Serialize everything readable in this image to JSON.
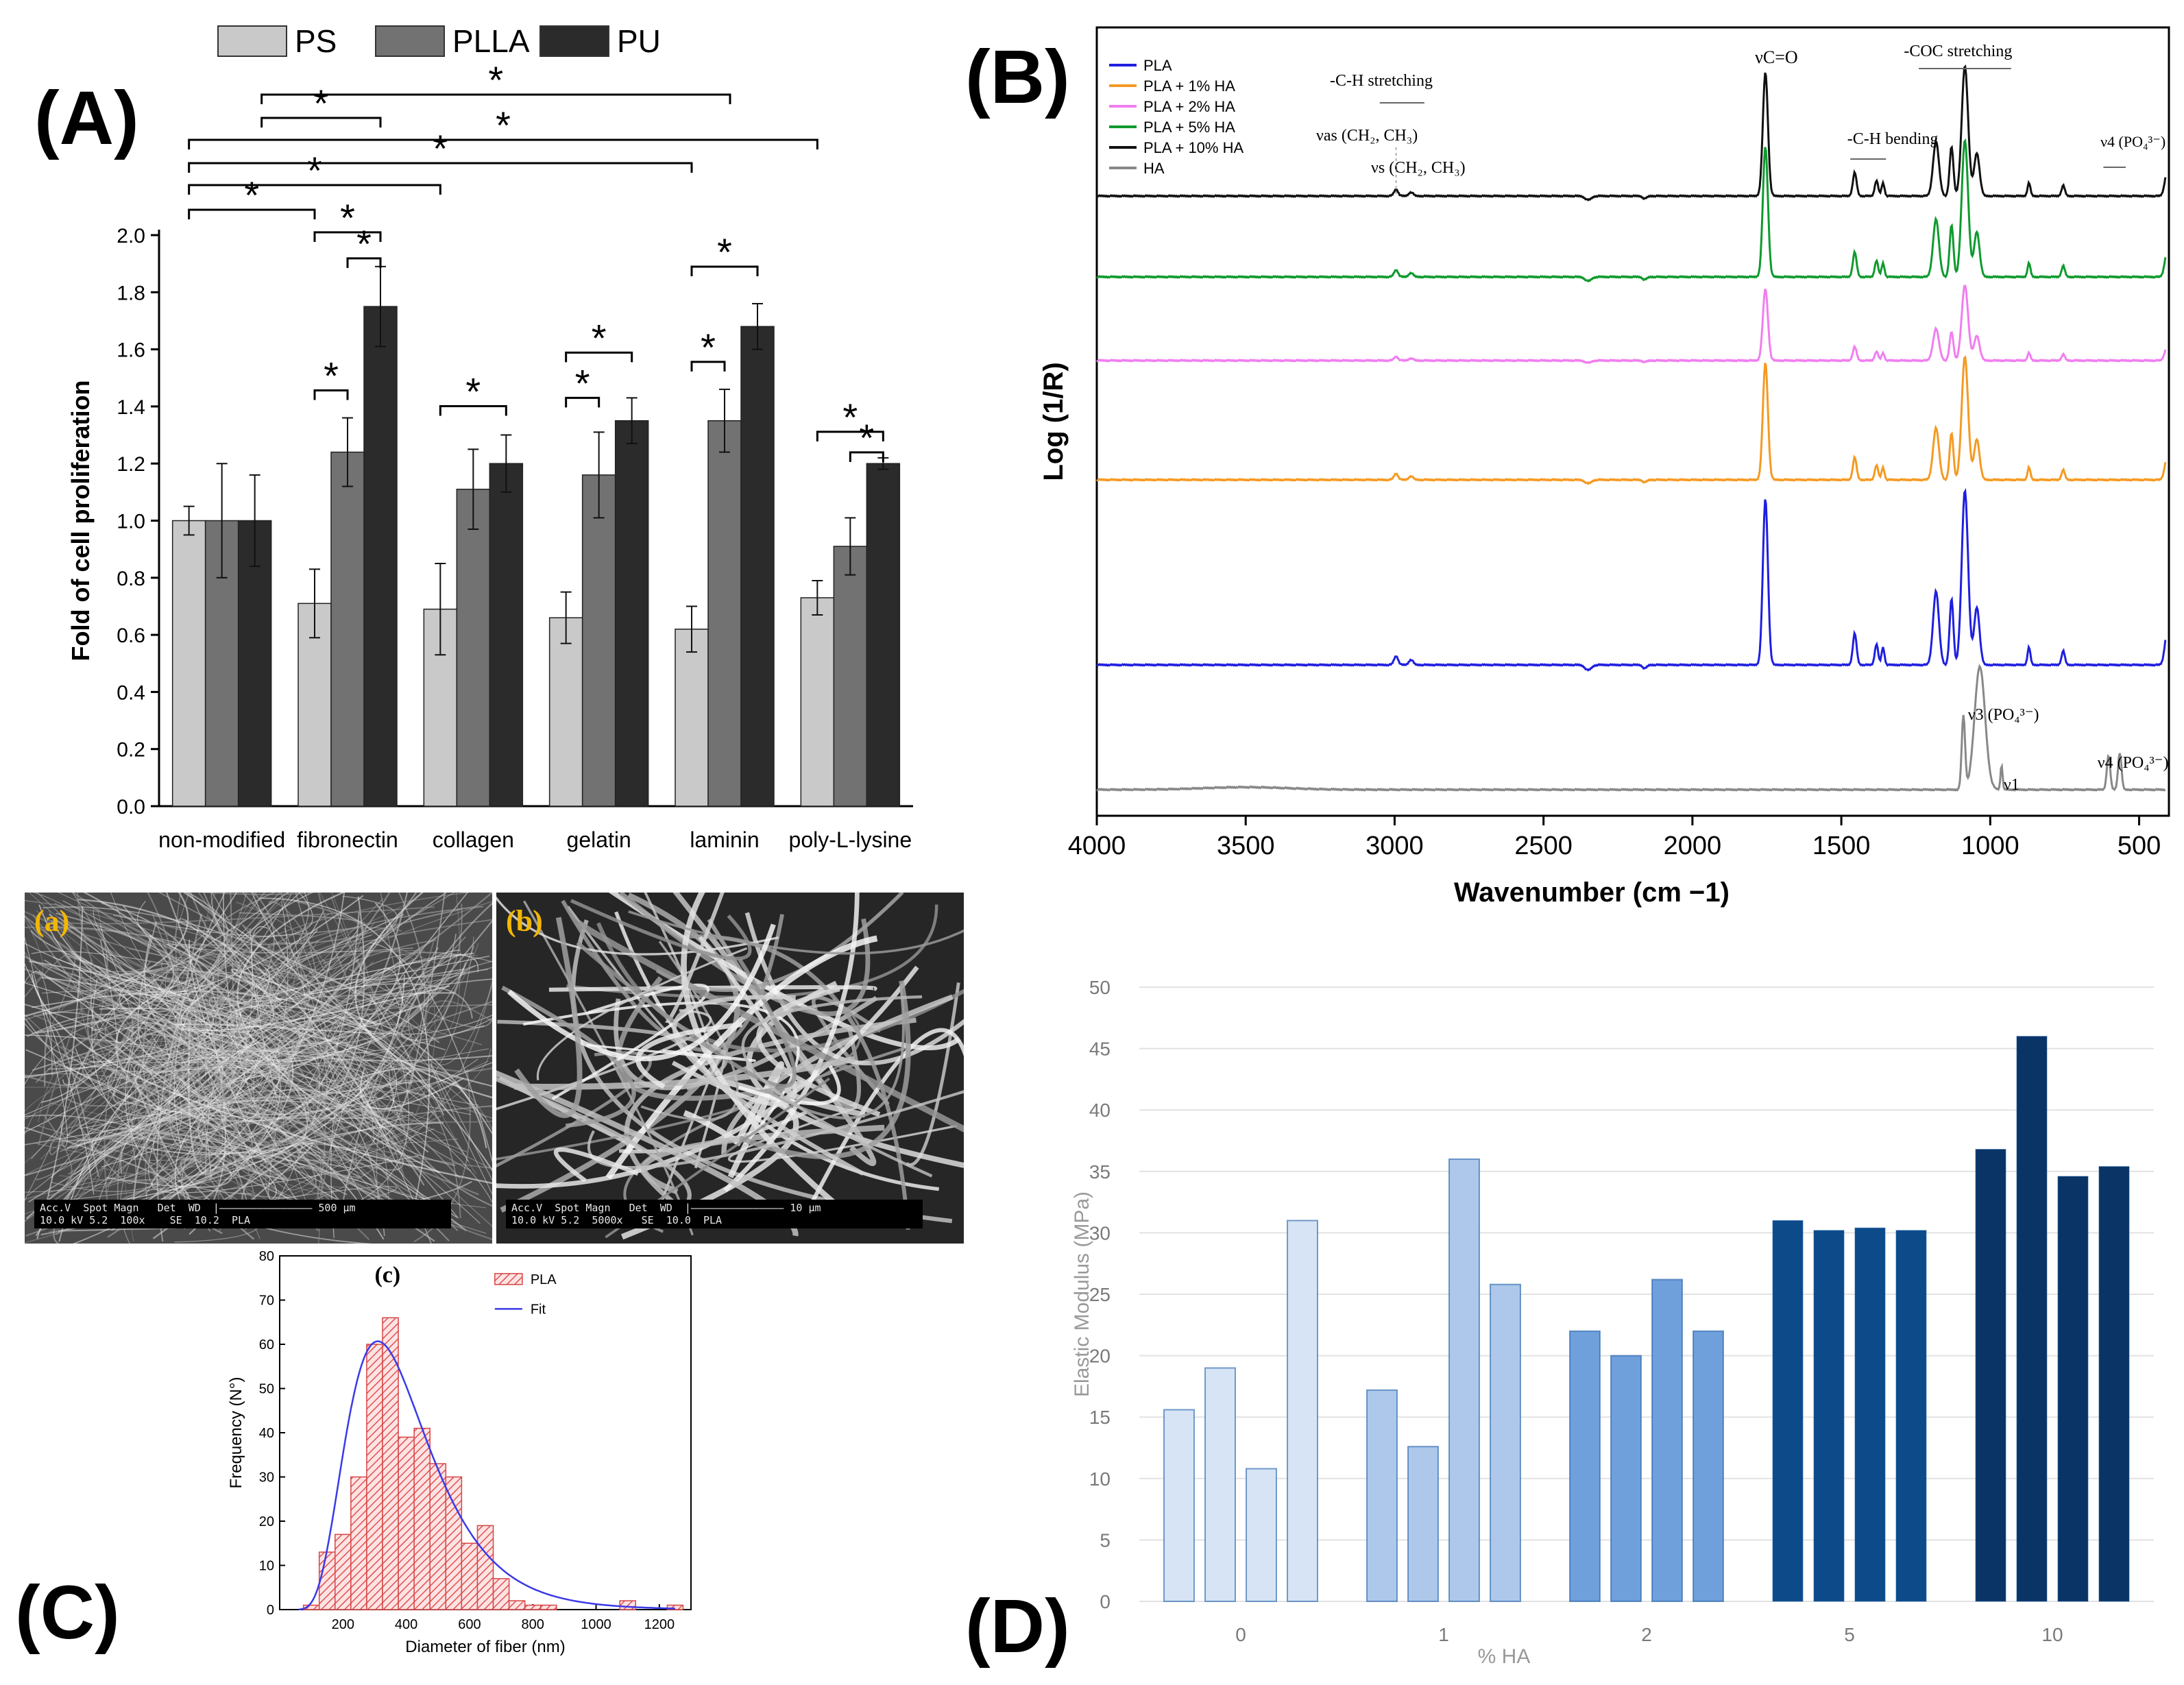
{
  "chart_data": [
    {
      "panel": "(A)",
      "type": "bar",
      "ylabel": "Fold of cell proliferation",
      "ylim": [
        0,
        2.0
      ],
      "yticks": [
        "0.0",
        "0.2",
        "0.4",
        "0.6",
        "0.8",
        "1.0",
        "1.2",
        "1.4",
        "1.6",
        "1.8",
        "2.0"
      ],
      "categories": [
        "non-modified",
        "fibronectin",
        "collagen",
        "gelatin",
        "laminin",
        "poly-L-lysine"
      ],
      "legend": [
        "PS",
        "PLLA",
        "PU"
      ],
      "colors": [
        "#c9c9c9",
        "#727272",
        "#2b2b2b"
      ],
      "series": [
        {
          "name": "PS",
          "values": [
            1.0,
            0.71,
            0.69,
            0.66,
            0.62,
            0.73
          ],
          "errors": [
            0.05,
            0.12,
            0.16,
            0.09,
            0.08,
            0.06
          ]
        },
        {
          "name": "PLLA",
          "values": [
            1.0,
            1.24,
            1.11,
            1.16,
            1.35,
            0.91
          ],
          "errors": [
            0.2,
            0.12,
            0.14,
            0.15,
            0.11,
            0.1
          ]
        },
        {
          "name": "PU",
          "values": [
            1.0,
            1.75,
            1.2,
            1.35,
            1.68,
            1.2
          ],
          "errors": [
            0.16,
            0.14,
            0.1,
            0.08,
            0.08,
            0.02
          ]
        }
      ],
      "significance_marker": "*"
    },
    {
      "panel": "(B)",
      "type": "line",
      "xlabel": "Wavenumber (cm −1)",
      "ylabel": "Log (1/R)",
      "xlim": [
        4000,
        400
      ],
      "xticks": [
        "4000",
        "3500",
        "3000",
        "2500",
        "2000",
        "1500",
        "1000",
        "500"
      ],
      "legend": [
        "PLA",
        "PLA + 1%  HA",
        "PLA + 2%  HA",
        "PLA + 5%  HA",
        "PLA + 10% HA",
        "HA"
      ],
      "colors": [
        "#1f1fe0",
        "#f59a23",
        "#f07ef0",
        "#0f9a2e",
        "#111111",
        "#888888"
      ],
      "annotations": [
        "-C-H stretching",
        "νas (CH₂, CH₃)",
        "νs (CH₂, CH₃)",
        "νC=O",
        "-C-H bending",
        "-COC stretching",
        "ν4 (PO₄³⁻)",
        "ν3 (PO₄³⁻)",
        "ν1",
        "ν4 (PO₄³⁻)"
      ]
    },
    {
      "panel": "(C)",
      "type": "bar",
      "subpanel": "(c)",
      "xlabel": "Diameter of fiber (nm)",
      "ylabel": "Frequency (N°)",
      "xlim": [
        0,
        1300
      ],
      "ylim": [
        0,
        80
      ],
      "xticks": [
        "200",
        "400",
        "600",
        "800",
        "1000",
        "1200"
      ],
      "yticks": [
        "0",
        "10",
        "20",
        "30",
        "40",
        "50",
        "60",
        "70",
        "80"
      ],
      "legend": [
        "PLA",
        "Fit"
      ],
      "bins": [
        100,
        150,
        200,
        250,
        300,
        350,
        400,
        450,
        500,
        550,
        600,
        650,
        700,
        750,
        800,
        850,
        900,
        950,
        1000,
        1050,
        1100,
        1150,
        1200,
        1250
      ],
      "values": [
        1,
        13,
        17,
        30,
        60,
        66,
        39,
        41,
        33,
        30,
        15,
        19,
        7,
        2,
        1,
        1,
        0,
        0,
        0,
        0,
        2,
        0,
        0,
        1
      ]
    },
    {
      "panel": "(D)",
      "type": "bar",
      "xlabel": "% HA",
      "ylabel": "Elastic Modulus (MPa)",
      "ylim": [
        0,
        50
      ],
      "yticks": [
        "0",
        "5",
        "10",
        "15",
        "20",
        "25",
        "30",
        "35",
        "40",
        "45",
        "50"
      ],
      "categories": [
        "0",
        "1",
        "2",
        "5",
        "10"
      ],
      "colors": [
        "#d6e4f5",
        "#adc8ea",
        "#6fa0dc",
        "#0c4a8a",
        "#0a3466"
      ],
      "groups": [
        {
          "label": "0",
          "values": [
            15.6,
            19,
            10.8,
            31
          ]
        },
        {
          "label": "1",
          "values": [
            17.2,
            12.6,
            36,
            25.8
          ]
        },
        {
          "label": "2",
          "values": [
            22,
            20,
            26.2,
            22
          ]
        },
        {
          "label": "5",
          "values": [
            31,
            30.2,
            30.4,
            30.2
          ]
        },
        {
          "label": "10",
          "values": [
            36.8,
            46,
            34.6,
            35.4
          ]
        }
      ]
    }
  ],
  "panels": {
    "a": "(A)",
    "b": "(B)",
    "c": "(C)",
    "d": "(D)"
  },
  "sem": {
    "a_label": "(a)",
    "b_label": "(b)",
    "a_bar": "Acc.V  Spot Magn   Det  WD  |——————————————— 500 μm\n10.0 kV 5.2  100x    SE  10.2  PLA",
    "b_bar": "Acc.V  Spot Magn   Det  WD  |——————————————— 10 μm\n10.0 kV 5.2  5000x   SE  10.0  PLA"
  }
}
